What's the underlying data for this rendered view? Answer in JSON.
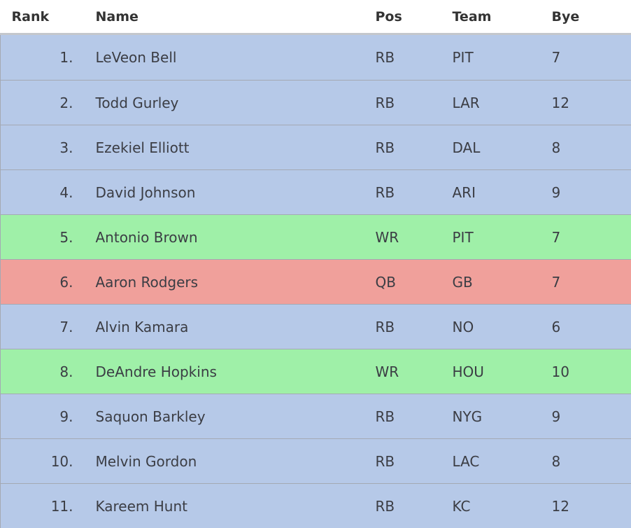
{
  "table": {
    "headers": {
      "rank": "Rank",
      "name": "Name",
      "pos": "Pos",
      "team": "Team",
      "bye": "Bye"
    },
    "rows": [
      {
        "rank": "1.",
        "name": "LeVeon Bell",
        "pos": "RB",
        "team": "PIT",
        "bye": "7"
      },
      {
        "rank": "2.",
        "name": "Todd Gurley",
        "pos": "RB",
        "team": "LAR",
        "bye": "12"
      },
      {
        "rank": "3.",
        "name": "Ezekiel Elliott",
        "pos": "RB",
        "team": "DAL",
        "bye": "8"
      },
      {
        "rank": "4.",
        "name": "David Johnson",
        "pos": "RB",
        "team": "ARI",
        "bye": "9"
      },
      {
        "rank": "5.",
        "name": "Antonio Brown",
        "pos": "WR",
        "team": "PIT",
        "bye": "7"
      },
      {
        "rank": "6.",
        "name": "Aaron Rodgers",
        "pos": "QB",
        "team": "GB",
        "bye": "7"
      },
      {
        "rank": "7.",
        "name": "Alvin Kamara",
        "pos": "RB",
        "team": "NO",
        "bye": "6"
      },
      {
        "rank": "8.",
        "name": "DeAndre Hopkins",
        "pos": "WR",
        "team": "HOU",
        "bye": "10"
      },
      {
        "rank": "9.",
        "name": "Saquon Barkley",
        "pos": "RB",
        "team": "NYG",
        "bye": "9"
      },
      {
        "rank": "10.",
        "name": "Melvin Gordon",
        "pos": "RB",
        "team": "LAC",
        "bye": "8"
      },
      {
        "rank": "11.",
        "name": "Kareem Hunt",
        "pos": "RB",
        "team": "KC",
        "bye": "12"
      }
    ]
  },
  "colors": {
    "rb_row": "#b6c9e8",
    "wr_row": "#9ff0a8",
    "qb_row": "#f0a09b"
  }
}
